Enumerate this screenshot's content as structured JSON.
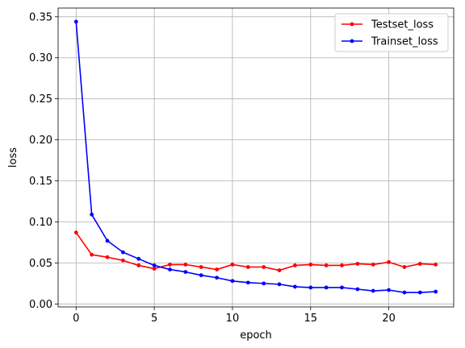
{
  "chart_data": {
    "type": "line",
    "title": "",
    "xlabel": "epoch",
    "ylabel": "loss",
    "xlim": [
      -1.15,
      24.15
    ],
    "ylim": [
      -0.0036,
      0.3606
    ],
    "xticks": [
      0,
      5,
      10,
      15,
      20
    ],
    "xtick_labels": [
      "0",
      "5",
      "10",
      "15",
      "20"
    ],
    "yticks": [
      0.0,
      0.05,
      0.1,
      0.15,
      0.2,
      0.25,
      0.3,
      0.35
    ],
    "ytick_labels": [
      "0.00",
      "0.05",
      "0.10",
      "0.15",
      "0.20",
      "0.25",
      "0.30",
      "0.35"
    ],
    "grid": true,
    "legend_position": "top-right",
    "x": [
      0,
      1,
      2,
      3,
      4,
      5,
      6,
      7,
      8,
      9,
      10,
      11,
      12,
      13,
      14,
      15,
      16,
      17,
      18,
      19,
      20,
      21,
      22,
      23
    ],
    "series": [
      {
        "name": "Testset_loss",
        "color": "#ff0000",
        "values": [
          0.087,
          0.06,
          0.057,
          0.053,
          0.047,
          0.043,
          0.048,
          0.048,
          0.045,
          0.042,
          0.048,
          0.045,
          0.045,
          0.041,
          0.047,
          0.048,
          0.047,
          0.047,
          0.049,
          0.048,
          0.051,
          0.045,
          0.049,
          0.048
        ]
      },
      {
        "name": "Trainset_loss",
        "color": "#0000ff",
        "values": [
          0.344,
          0.109,
          0.077,
          0.063,
          0.055,
          0.047,
          0.042,
          0.039,
          0.035,
          0.032,
          0.028,
          0.026,
          0.025,
          0.024,
          0.021,
          0.02,
          0.02,
          0.02,
          0.018,
          0.016,
          0.017,
          0.014,
          0.014,
          0.015
        ]
      }
    ]
  }
}
